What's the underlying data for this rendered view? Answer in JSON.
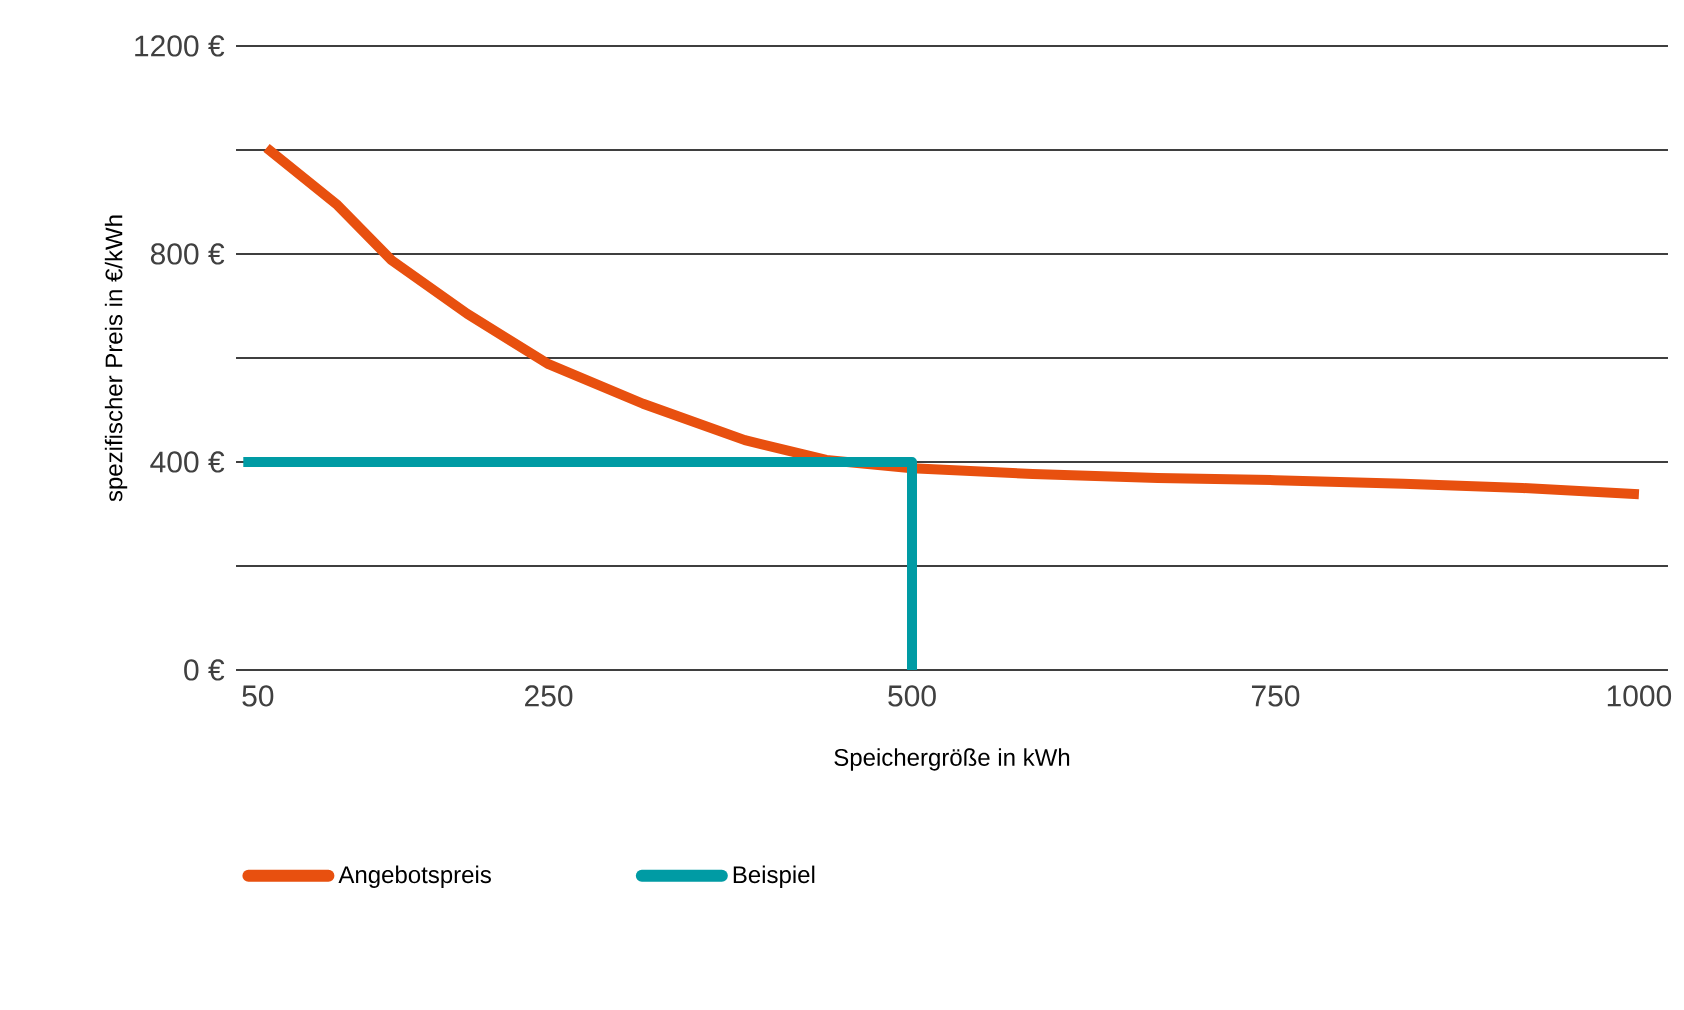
{
  "chart_data": {
    "type": "line",
    "xlabel": "Speichergröße in kWh",
    "ylabel": "spezifischer Preis in €/kWh",
    "xlim": [
      35,
      1020
    ],
    "xticks": [
      50,
      250,
      500,
      750,
      1000
    ],
    "ylim": [
      0,
      1200
    ],
    "yticks": [
      {
        "value": 0,
        "label": "0 €"
      },
      {
        "value": 200,
        "label": null
      },
      {
        "value": 400,
        "label": "400 €"
      },
      {
        "value": 600,
        "label": null
      },
      {
        "value": 800,
        "label": "800 €"
      },
      {
        "value": 1000,
        "label": null
      },
      {
        "value": 1200,
        "label": "1200 €"
      }
    ],
    "grid": "y",
    "legend": "bottom",
    "line_style": "solid",
    "series": [
      {
        "name": "Angebotspreis",
        "color": "#e8500f",
        "x": [
          56,
          104,
          142,
          194,
          250,
          315,
          385,
          441,
          500,
          583,
          669,
          750,
          838,
          920,
          1000
        ],
        "values": [
          1004,
          896,
          788,
          685,
          588,
          512,
          442,
          404,
          388,
          377,
          369,
          365,
          358,
          350,
          338
        ]
      },
      {
        "name": "Beispiel",
        "color": "#009ba4",
        "x": [
          40,
          500,
          500
        ],
        "values": [
          400,
          400,
          0
        ]
      }
    ]
  }
}
